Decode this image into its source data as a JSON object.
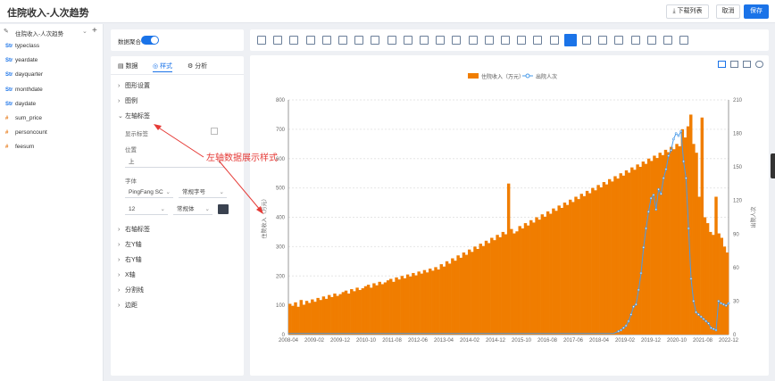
{
  "header": {
    "title": "住院收入-人次趋势",
    "download_label": "下载列表",
    "cancel_label": "取消",
    "save_label": "保存"
  },
  "datasource": {
    "name": "住院收入-人次趋势"
  },
  "fields": [
    {
      "type": "Str",
      "name": "typeclass"
    },
    {
      "type": "Str",
      "name": "yeardate"
    },
    {
      "type": "Str",
      "name": "dayquarter"
    },
    {
      "type": "Str",
      "name": "monthdate"
    },
    {
      "type": "Str",
      "name": "daydate"
    },
    {
      "type": "#",
      "name": "sum_price"
    },
    {
      "type": "#",
      "name": "personcount"
    },
    {
      "type": "#",
      "name": "feesum"
    }
  ],
  "config": {
    "aggregate_label": "数据聚合",
    "tabs": [
      "数据",
      "样式",
      "分析"
    ],
    "active_tab": "样式",
    "sections_top": [
      "图形设置",
      "图例",
      "左轴标签"
    ],
    "left_axis": {
      "show_label": "显示标签",
      "position_label": "位置",
      "position_value": "上",
      "font_label": "字体",
      "font_family": "PingFang SC",
      "font_weight": "常规字号",
      "font_size": "12",
      "font_style": "常规体"
    },
    "sections_bottom": [
      "右轴标签",
      "左Y轴",
      "右Y轴",
      "X轴",
      "分割线",
      "边距"
    ]
  },
  "annotation": "左轴数据展示样式",
  "chart_data": {
    "type": "bar",
    "legend": [
      "住院收入（万元）",
      "出院人次"
    ],
    "legend_position": "top",
    "ylabel_left": "住院收入（万元）",
    "ylabel_right": "出院人次",
    "yleft_ticks": [
      "0",
      "100",
      "200",
      "300",
      "400",
      "500",
      "600",
      "700",
      "800"
    ],
    "yright_ticks": [
      "0",
      "30",
      "60",
      "90",
      "120",
      "150",
      "180",
      "210"
    ],
    "ylim_left": [
      0,
      800
    ],
    "ylim_right": [
      0,
      210
    ],
    "x_ticks": [
      "2008-04",
      "2009-02",
      "2009-12",
      "2010-10",
      "2011-08",
      "2012-06",
      "2013-04",
      "2014-02",
      "2014-12",
      "2015-10",
      "2016-08",
      "2017-06",
      "2018-04",
      "2019-02",
      "2019-12",
      "2020-10",
      "2021-08",
      "2022-12"
    ],
    "bar_values": [
      105,
      98,
      110,
      95,
      118,
      102,
      115,
      108,
      120,
      112,
      125,
      118,
      130,
      122,
      135,
      128,
      140,
      132,
      138,
      145,
      150,
      140,
      155,
      148,
      160,
      152,
      158,
      165,
      170,
      160,
      175,
      168,
      180,
      172,
      178,
      185,
      190,
      180,
      195,
      188,
      200,
      192,
      205,
      198,
      210,
      202,
      215,
      208,
      220,
      212,
      225,
      218,
      230,
      222,
      240,
      232,
      250,
      242,
      260,
      252,
      270,
      262,
      280,
      272,
      290,
      282,
      300,
      292,
      310,
      302,
      320,
      312,
      330,
      322,
      340,
      332,
      350,
      342,
      515,
      360,
      345,
      352,
      370,
      362,
      380,
      372,
      390,
      382,
      400,
      392,
      410,
      402,
      420,
      412,
      430,
      422,
      440,
      432,
      450,
      442,
      460,
      452,
      470,
      462,
      480,
      472,
      490,
      482,
      500,
      492,
      510,
      502,
      520,
      512,
      530,
      522,
      540,
      532,
      550,
      542,
      560,
      552,
      570,
      562,
      580,
      572,
      590,
      582,
      600,
      592,
      610,
      602,
      620,
      612,
      630,
      622,
      640,
      632,
      650,
      642,
      700,
      672,
      710,
      750,
      650,
      620,
      470,
      740,
      400,
      380,
      350,
      340,
      470,
      345,
      330,
      300,
      280
    ],
    "line_values": [
      1,
      1,
      1,
      1,
      1,
      1,
      1,
      1,
      1,
      1,
      1,
      1,
      1,
      1,
      1,
      1,
      1,
      1,
      1,
      1,
      1,
      1,
      1,
      1,
      1,
      1,
      1,
      1,
      1,
      1,
      1,
      1,
      1,
      1,
      1,
      1,
      1,
      1,
      1,
      1,
      1,
      1,
      1,
      1,
      1,
      1,
      1,
      1,
      1,
      1,
      1,
      1,
      1,
      1,
      1,
      1,
      1,
      1,
      1,
      1,
      1,
      1,
      1,
      1,
      1,
      1,
      1,
      1,
      1,
      1,
      1,
      1,
      1,
      1,
      1,
      1,
      1,
      1,
      1,
      1,
      1,
      1,
      1,
      1,
      1,
      1,
      1,
      1,
      1,
      1,
      1,
      1,
      1,
      1,
      1,
      1,
      1,
      1,
      1,
      1,
      1,
      1,
      1,
      1,
      1,
      1,
      1,
      1,
      1,
      1,
      1,
      1,
      1,
      1,
      1,
      1,
      1,
      1,
      1,
      1,
      1,
      1,
      1,
      1,
      1,
      1,
      1,
      1,
      1,
      1,
      1,
      2,
      3,
      4,
      6,
      8,
      12,
      18,
      25,
      27,
      40,
      55,
      78,
      95,
      110,
      122,
      125,
      112,
      130,
      126,
      140,
      148,
      160,
      165,
      175,
      180,
      178,
      182,
      155,
      140,
      95,
      50,
      30,
      20,
      18,
      16,
      14,
      12,
      10,
      6,
      5,
      4,
      30,
      28,
      27,
      26,
      28
    ]
  },
  "colors": {
    "bar": "#f07d00",
    "line": "#4a9be8",
    "accent": "#1a73e8",
    "annotation": "#e53935"
  }
}
